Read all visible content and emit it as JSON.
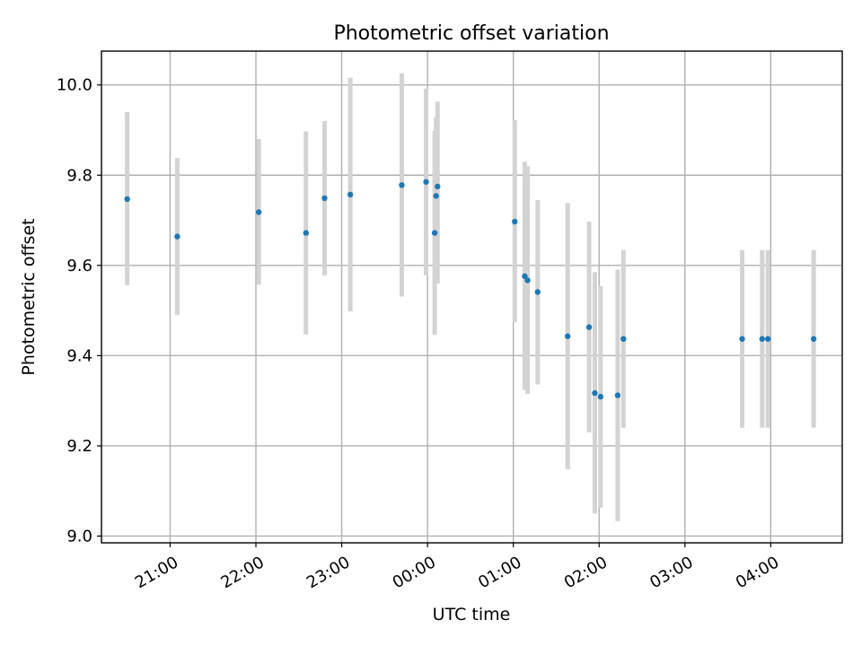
{
  "chart_data": {
    "type": "scatter",
    "title": "Photometric offset variation",
    "xlabel": "UTC time",
    "ylabel": "Photometric offset",
    "x_unit": "UTC time (HH:MM)",
    "xlim": [
      "20:12",
      "04:50"
    ],
    "ylim": [
      8.985,
      10.075
    ],
    "x_ticks": [
      "21:00",
      "22:00",
      "23:00",
      "00:00",
      "01:00",
      "02:00",
      "03:00",
      "04:00"
    ],
    "y_ticks": [
      9.0,
      9.2,
      9.4,
      9.6,
      9.8,
      10.0
    ],
    "grid": true,
    "legend": "none",
    "colors": {
      "points": "#1f77b4",
      "error_bars": "#d3d3d3",
      "grid": "#b0b0b0"
    },
    "series": [
      {
        "points": [
          {
            "x": "20:30",
            "y": 9.747,
            "y_low": 9.556,
            "y_high": 9.94
          },
          {
            "x": "21:05",
            "y": 9.664,
            "y_low": 9.49,
            "y_high": 9.838
          },
          {
            "x": "22:02",
            "y": 9.718,
            "y_low": 9.557,
            "y_high": 9.88
          },
          {
            "x": "22:35",
            "y": 9.672,
            "y_low": 9.447,
            "y_high": 9.897
          },
          {
            "x": "22:48",
            "y": 9.749,
            "y_low": 9.578,
            "y_high": 9.92
          },
          {
            "x": "23:06",
            "y": 9.757,
            "y_low": 9.498,
            "y_high": 10.016
          },
          {
            "x": "23:42",
            "y": 9.778,
            "y_low": 9.531,
            "y_high": 10.026
          },
          {
            "x": "23:59",
            "y": 9.785,
            "y_low": 9.578,
            "y_high": 9.992
          },
          {
            "x": "00:05",
            "y": 9.672,
            "y_low": 9.446,
            "y_high": 9.898
          },
          {
            "x": "00:06",
            "y": 9.754,
            "y_low": 9.58,
            "y_high": 9.928
          },
          {
            "x": "00:07",
            "y": 9.775,
            "y_low": 9.56,
            "y_high": 9.963
          },
          {
            "x": "01:01",
            "y": 9.697,
            "y_low": 9.474,
            "y_high": 9.922
          },
          {
            "x": "01:08",
            "y": 9.576,
            "y_low": 9.324,
            "y_high": 9.83
          },
          {
            "x": "01:10",
            "y": 9.567,
            "y_low": 9.315,
            "y_high": 9.82
          },
          {
            "x": "01:17",
            "y": 9.541,
            "y_low": 9.336,
            "y_high": 9.745
          },
          {
            "x": "01:38",
            "y": 9.443,
            "y_low": 9.148,
            "y_high": 9.738
          },
          {
            "x": "01:53",
            "y": 9.463,
            "y_low": 9.23,
            "y_high": 9.697
          },
          {
            "x": "01:57",
            "y": 9.317,
            "y_low": 9.05,
            "y_high": 9.585
          },
          {
            "x": "02:01",
            "y": 9.309,
            "y_low": 9.063,
            "y_high": 9.554
          },
          {
            "x": "02:13",
            "y": 9.312,
            "y_low": 9.033,
            "y_high": 9.591
          },
          {
            "x": "02:17",
            "y": 9.437,
            "y_low": 9.24,
            "y_high": 9.634
          },
          {
            "x": "03:40",
            "y": 9.437,
            "y_low": 9.24,
            "y_high": 9.634
          },
          {
            "x": "03:54",
            "y": 9.437,
            "y_low": 9.24,
            "y_high": 9.634
          },
          {
            "x": "03:58",
            "y": 9.437,
            "y_low": 9.24,
            "y_high": 9.634
          },
          {
            "x": "04:30",
            "y": 9.437,
            "y_low": 9.24,
            "y_high": 9.634
          }
        ]
      }
    ]
  }
}
